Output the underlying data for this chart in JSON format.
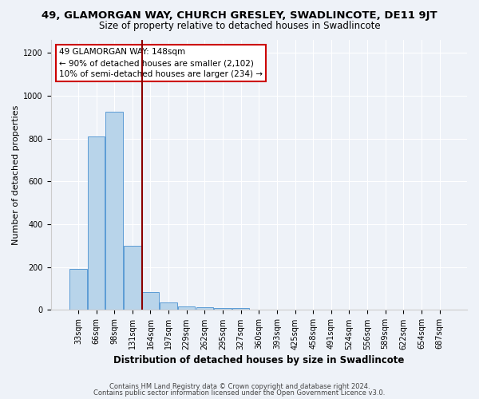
{
  "title1": "49, GLAMORGAN WAY, CHURCH GRESLEY, SWADLINCOTE, DE11 9JT",
  "title2": "Size of property relative to detached houses in Swadlincote",
  "xlabel": "Distribution of detached houses by size in Swadlincote",
  "ylabel": "Number of detached properties",
  "categories": [
    "33sqm",
    "66sqm",
    "98sqm",
    "131sqm",
    "164sqm",
    "197sqm",
    "229sqm",
    "262sqm",
    "295sqm",
    "327sqm",
    "360sqm",
    "393sqm",
    "425sqm",
    "458sqm",
    "491sqm",
    "524sqm",
    "556sqm",
    "589sqm",
    "622sqm",
    "654sqm",
    "687sqm"
  ],
  "values": [
    190,
    810,
    925,
    300,
    85,
    35,
    18,
    12,
    8,
    8,
    0,
    0,
    0,
    0,
    0,
    0,
    0,
    0,
    0,
    0,
    0
  ],
  "bar_color": "#b8d4ea",
  "bar_edge_color": "#5b9bd5",
  "vline_color": "#8b0000",
  "annotation_line1": "49 GLAMORGAN WAY: 148sqm",
  "annotation_line2": "← 90% of detached houses are smaller (2,102)",
  "annotation_line3": "10% of semi-detached houses are larger (234) →",
  "annotation_box_color": "#ffffff",
  "annotation_box_edge": "#cc0000",
  "ylim": [
    0,
    1260
  ],
  "yticks": [
    0,
    200,
    400,
    600,
    800,
    1000,
    1200
  ],
  "footer1": "Contains HM Land Registry data © Crown copyright and database right 2024.",
  "footer2": "Contains public sector information licensed under the Open Government Licence v3.0.",
  "bg_color": "#eef2f8",
  "plot_bg_color": "#eef2f8",
  "title1_fontsize": 9.5,
  "title2_fontsize": 8.5,
  "xlabel_fontsize": 8.5,
  "ylabel_fontsize": 8,
  "tick_fontsize": 7,
  "annot_fontsize": 7.5,
  "footer_fontsize": 6
}
